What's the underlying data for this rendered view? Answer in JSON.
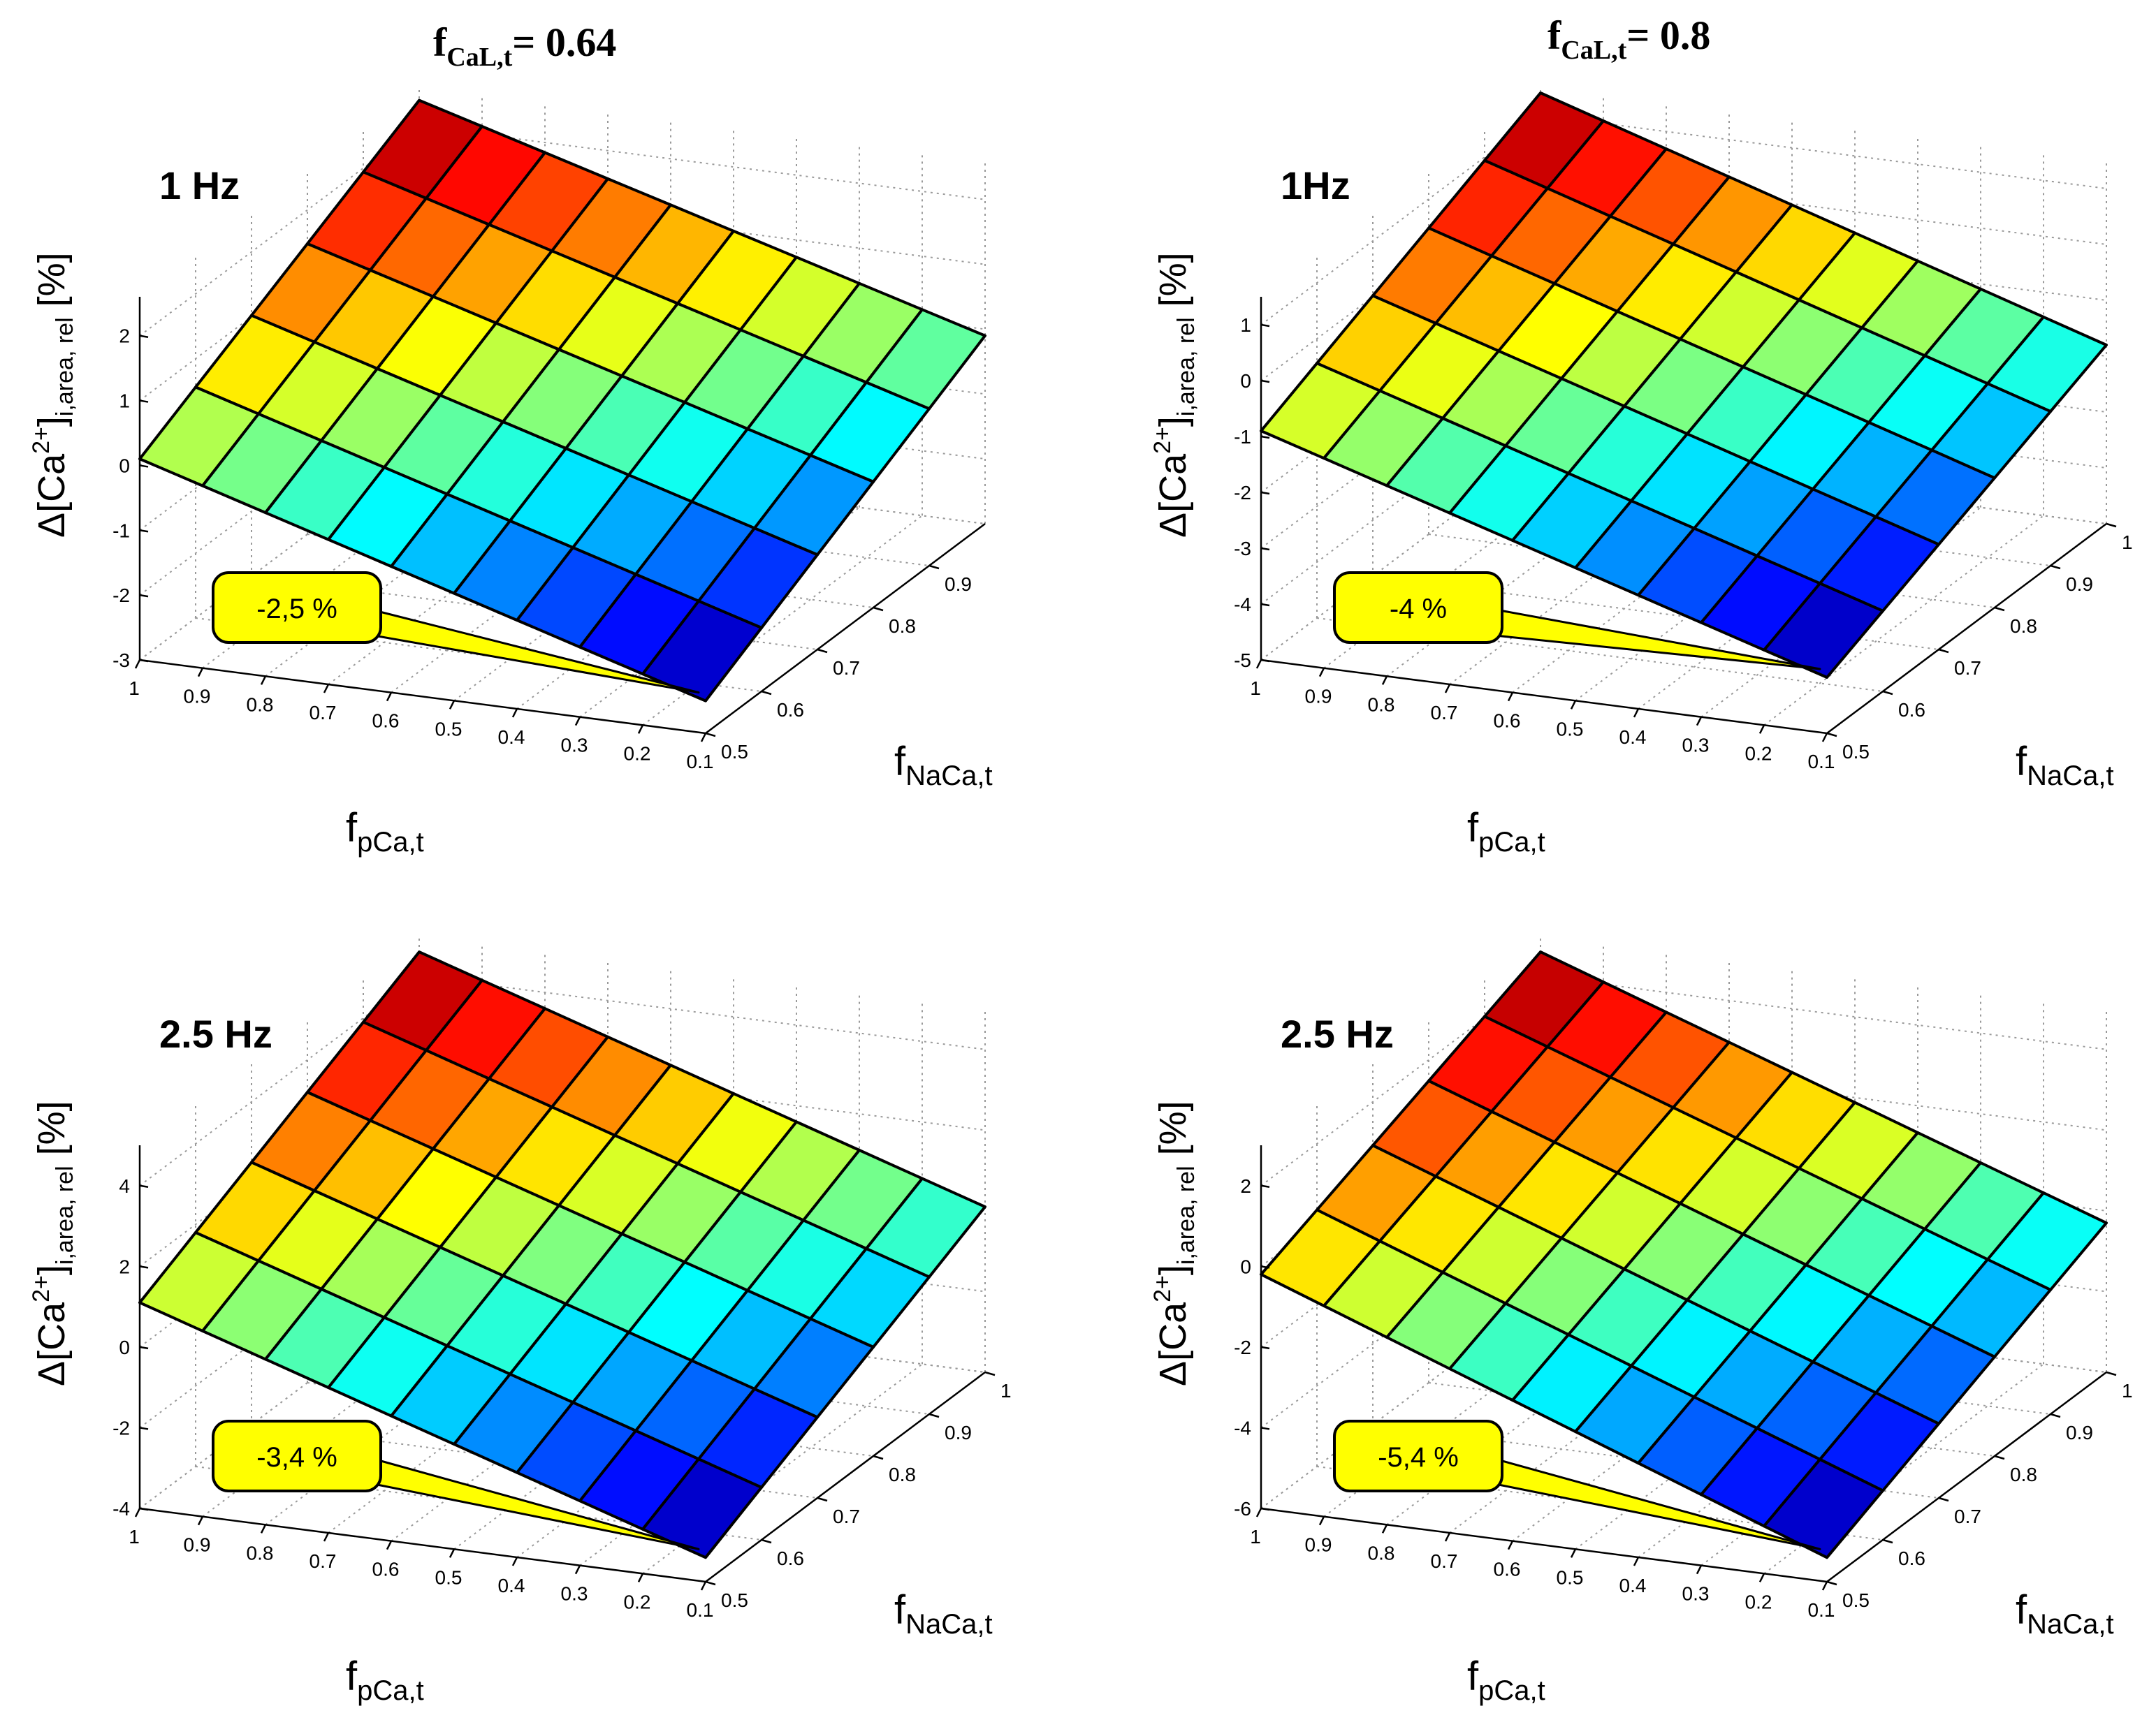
{
  "column_headers": [
    {
      "base": "f",
      "sub": "CaL,t",
      "rest": "= 0.64"
    },
    {
      "base": "f",
      "sub": "CaL,t",
      "rest": "= 0.8"
    }
  ],
  "chart_data": [
    {
      "type": "surface",
      "freq_label": "1 Hz",
      "callout": "-2,5 %",
      "zlabel": {
        "pre": "Δ[Ca",
        "sup": "2+",
        "mid": "]",
        "sub": "i,area, rel",
        "post": " [%]"
      },
      "xlabel": {
        "base": "f",
        "sub": "pCa,t"
      },
      "ylabel": {
        "base": "f",
        "sub": "NaCa,t"
      },
      "x_ticks": [
        "1",
        "0.9",
        "0.8",
        "0.7",
        "0.6",
        "0.5",
        "0.4",
        "0.3",
        "0.2",
        "0.1"
      ],
      "y_ticks": [
        "0.5",
        "0.6",
        "0.7",
        "0.8",
        "0.9"
      ],
      "z_ticks": [
        "-3",
        "-2",
        "-1",
        "0",
        "1",
        "2"
      ],
      "xlim": [
        0.1,
        1
      ],
      "ylim": [
        0.5,
        1
      ],
      "zlim": [
        -3,
        2.6
      ],
      "z_corners": {
        "x1y05": 0.1,
        "x1y1": 2.4,
        "x01y05": -2.5,
        "x01y1": -0.1
      },
      "grid": true
    },
    {
      "type": "surface",
      "freq_label": "1Hz",
      "callout": "-4 %",
      "zlabel": {
        "pre": "Δ[Ca",
        "sup": "2+",
        "mid": "]",
        "sub": "i,area, rel",
        "post": " [%]"
      },
      "xlabel": {
        "base": "f",
        "sub": "pCa,t"
      },
      "ylabel": {
        "base": "f",
        "sub": "NaCa,t"
      },
      "x_ticks": [
        "1",
        "0.9",
        "0.8",
        "0.7",
        "0.6",
        "0.5",
        "0.4",
        "0.3",
        "0.2",
        "0.1"
      ],
      "y_ticks": [
        "0.5",
        "0.6",
        "0.7",
        "0.8",
        "0.9",
        "1"
      ],
      "z_ticks": [
        "-5",
        "-4",
        "-3",
        "-2",
        "-1",
        "0",
        "1"
      ],
      "xlim": [
        0.1,
        1
      ],
      "ylim": [
        0.5,
        1
      ],
      "zlim": [
        -5,
        1.5
      ],
      "z_corners": {
        "x1y05": -0.9,
        "x1y1": 1.4,
        "x01y05": -4.0,
        "x01y1": -1.8
      },
      "grid": true
    },
    {
      "type": "surface",
      "freq_label": "2.5 Hz",
      "callout": "-3,4 %",
      "zlabel": {
        "pre": "Δ[Ca",
        "sup": "2+",
        "mid": "]",
        "sub": "i,area, rel",
        "post": " [%]"
      },
      "xlabel": {
        "base": "f",
        "sub": "pCa,t"
      },
      "ylabel": {
        "base": "f",
        "sub": "NaCa,t"
      },
      "x_ticks": [
        "1",
        "0.9",
        "0.8",
        "0.7",
        "0.6",
        "0.5",
        "0.4",
        "0.3",
        "0.2",
        "0.1"
      ],
      "y_ticks": [
        "0.5",
        "0.6",
        "0.7",
        "0.8",
        "0.9",
        "1"
      ],
      "z_ticks": [
        "-4",
        "-2",
        "0",
        "2",
        "4"
      ],
      "xlim": [
        0.1,
        1
      ],
      "ylim": [
        0.5,
        1
      ],
      "zlim": [
        -4,
        5
      ],
      "z_corners": {
        "x1y05": 1.1,
        "x1y1": 4.6,
        "x01y05": -3.4,
        "x01y1": 0.1
      },
      "grid": true
    },
    {
      "type": "surface",
      "freq_label": "2.5 Hz",
      "callout": "-5,4 %",
      "zlabel": {
        "pre": "Δ[Ca",
        "sup": "2+",
        "mid": "]",
        "sub": "i,area, rel",
        "post": " [%]"
      },
      "xlabel": {
        "base": "f",
        "sub": "pCa,t"
      },
      "ylabel": {
        "base": "f",
        "sub": "NaCa,t"
      },
      "x_ticks": [
        "1",
        "0.9",
        "0.8",
        "0.7",
        "0.6",
        "0.5",
        "0.4",
        "0.3",
        "0.2",
        "0.1"
      ],
      "y_ticks": [
        "0.5",
        "0.6",
        "0.7",
        "0.8",
        "0.9",
        "1"
      ],
      "z_ticks": [
        "-6",
        "-4",
        "-2",
        "0",
        "2"
      ],
      "xlim": [
        0.1,
        1
      ],
      "ylim": [
        0.5,
        1
      ],
      "zlim": [
        -6,
        3
      ],
      "z_corners": {
        "x1y05": -0.2,
        "x1y1": 2.6,
        "x01y05": -5.4,
        "x01y1": -2.3
      },
      "grid": true
    }
  ]
}
